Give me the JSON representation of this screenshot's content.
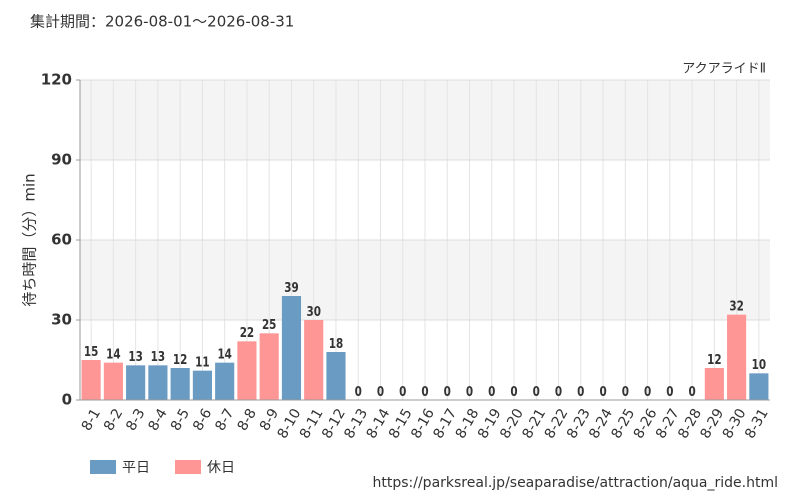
{
  "chart_data": {
    "type": "bar",
    "subtitle": "集計期間：2026-08-01～2026-08-31",
    "title": "アクアライドⅡ",
    "ylabel": "待ち時間（分）min",
    "source": "https://parksreal.jp/seaparadise/attraction/aqua_ride.html",
    "categories": [
      "8-1",
      "8-2",
      "8-3",
      "8-4",
      "8-5",
      "8-6",
      "8-7",
      "8-8",
      "8-9",
      "8-10",
      "8-11",
      "8-12",
      "8-13",
      "8-14",
      "8-15",
      "8-16",
      "8-17",
      "8-18",
      "8-19",
      "8-20",
      "8-21",
      "8-22",
      "8-23",
      "8-24",
      "8-25",
      "8-26",
      "8-27",
      "8-28",
      "8-29",
      "8-30",
      "8-31"
    ],
    "series": [
      {
        "name": "平日",
        "color": "#6a9bc3",
        "values": [
          null,
          null,
          13,
          13,
          12,
          11,
          14,
          null,
          null,
          39,
          null,
          18,
          0,
          0,
          null,
          null,
          0,
          0,
          0,
          0,
          0,
          null,
          null,
          0,
          0,
          0,
          0,
          0,
          null,
          null,
          10
        ]
      },
      {
        "name": "休日",
        "color": "#ff9696",
        "values": [
          15,
          14,
          null,
          null,
          null,
          null,
          null,
          22,
          25,
          null,
          30,
          null,
          null,
          null,
          0,
          0,
          null,
          null,
          null,
          null,
          null,
          0,
          0,
          null,
          null,
          null,
          null,
          null,
          12,
          32,
          null
        ]
      }
    ],
    "ylim": [
      0,
      120
    ],
    "yticks": [
      0,
      30,
      60,
      90,
      120
    ],
    "grid": true
  }
}
